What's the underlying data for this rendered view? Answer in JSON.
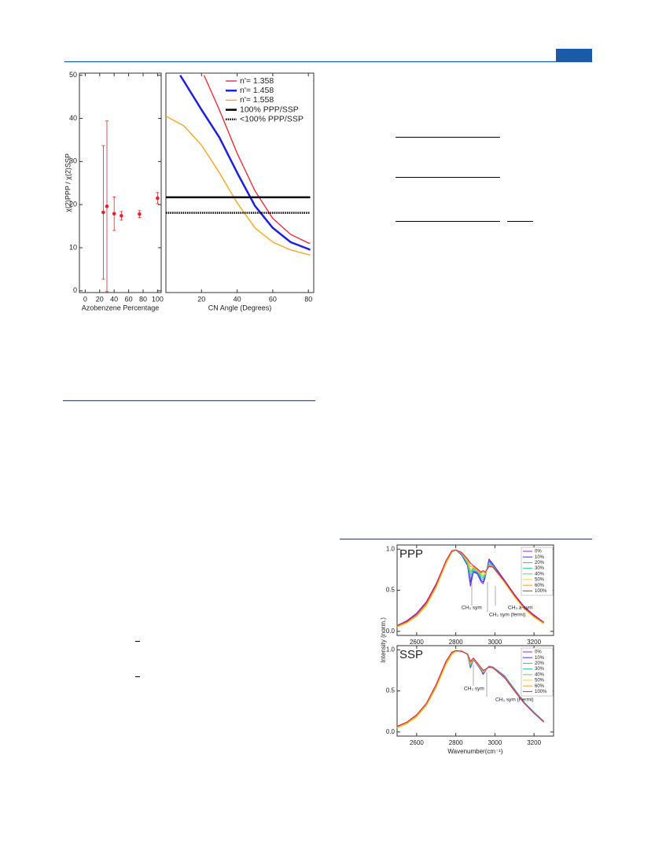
{
  "chart_data": [
    {
      "type": "scatter",
      "x_label": "Azobenzene Percentage",
      "y_label": "χ(2)PPP / χ(2)SSP",
      "x": [
        25,
        30,
        40,
        50,
        75,
        100
      ],
      "values": [
        18.2,
        19.6,
        17.9,
        17.4,
        17.8,
        21.5
      ],
      "errors": [
        15.5,
        19.8,
        3.9,
        1.0,
        0.8,
        1.3
      ],
      "color": "#e8202a",
      "xlim": [
        -8,
        105
      ],
      "ylim": [
        -0.4,
        50.5
      ],
      "xticks": [
        0,
        20,
        40,
        60,
        80,
        100
      ],
      "yticks": [
        0,
        10,
        20,
        30,
        40,
        50
      ]
    },
    {
      "type": "line",
      "x_label": "CN Angle (Degrees)",
      "xlim": [
        0,
        83
      ],
      "ylim": [
        -0.4,
        50.5
      ],
      "xticks": [
        20,
        40,
        60,
        80
      ],
      "legend": "top-right",
      "series": [
        {
          "name": "n'= 1.358",
          "color": "#e8303a",
          "style": "solid",
          "x": [
            21.4,
            30,
            40,
            50,
            60,
            70,
            80,
            81
          ],
          "values": [
            50,
            42,
            31.9,
            23.2,
            16.8,
            13.1,
            11.1,
            11
          ]
        },
        {
          "name": "n'= 1.458",
          "color": "#1f1fe0",
          "style": "solid",
          "x": [
            8,
            10,
            20,
            30,
            40,
            50,
            60,
            70,
            80,
            81
          ],
          "values": [
            50,
            48.7,
            42,
            35.6,
            27.4,
            19.7,
            14.6,
            11.3,
            9.7,
            9.5
          ]
        },
        {
          "name": "n'= 1.558",
          "color": "#f5a623",
          "style": "solid",
          "x": [
            0,
            10,
            20,
            30,
            40,
            50,
            60,
            70,
            80,
            81
          ],
          "values": [
            40.5,
            38.3,
            33.8,
            27.4,
            20.4,
            14.6,
            11.3,
            9.5,
            8.4,
            8.3
          ]
        },
        {
          "name": "100% PPP/SSP",
          "color": "#000000",
          "style": "solid",
          "x": [
            0,
            81
          ],
          "values": [
            21.7,
            21.7
          ]
        },
        {
          "name": "<100% PPP/SSP",
          "color": "#000000",
          "style": "dotted",
          "x": [
            0,
            81
          ],
          "values": [
            18.1,
            18.1
          ]
        }
      ]
    },
    {
      "type": "line",
      "panel": "PPP",
      "y_label": "Intensity (norm.)",
      "xlim": [
        2500,
        3300
      ],
      "ylim": [
        -0.05,
        1.05
      ],
      "xticks": [
        2600,
        2800,
        3000,
        3200
      ],
      "yticks": [
        {
          "value": 0,
          "label": "0.0"
        },
        0.5,
        {
          "value": 1,
          "label": "1.0"
        }
      ],
      "legend": "top-right",
      "annotations": [
        "CH₃ sym",
        "CH₃ sym (fermi)",
        "CH₃ a-sym"
      ],
      "x": [
        2500,
        2550,
        2600,
        2650,
        2700,
        2750,
        2780,
        2800,
        2830,
        2860,
        2875,
        2890,
        2910,
        2930,
        2940,
        2950,
        2970,
        2990,
        3050,
        3100,
        3150,
        3200,
        3250
      ],
      "series": [
        {
          "name": "0%",
          "color": "#8a2be2",
          "values": [
            0.07,
            0.13,
            0.22,
            0.36,
            0.58,
            0.85,
            0.97,
            0.99,
            0.93,
            0.8,
            0.55,
            0.72,
            0.7,
            0.6,
            0.58,
            0.65,
            0.88,
            0.82,
            0.62,
            0.45,
            0.3,
            0.2,
            0.11
          ]
        },
        {
          "name": "10%",
          "color": "#3a3adf",
          "values": [
            0.07,
            0.12,
            0.21,
            0.35,
            0.57,
            0.85,
            0.97,
            0.99,
            0.93,
            0.81,
            0.6,
            0.73,
            0.71,
            0.62,
            0.6,
            0.66,
            0.86,
            0.81,
            0.61,
            0.44,
            0.29,
            0.19,
            0.11
          ]
        },
        {
          "name": "20%",
          "color": "#4aa8e8",
          "values": [
            0.06,
            0.12,
            0.2,
            0.34,
            0.56,
            0.84,
            0.97,
            0.99,
            0.94,
            0.82,
            0.64,
            0.74,
            0.72,
            0.64,
            0.63,
            0.67,
            0.84,
            0.8,
            0.6,
            0.43,
            0.29,
            0.19,
            0.1
          ]
        },
        {
          "name": "30%",
          "color": "#2ec4b0",
          "values": [
            0.06,
            0.11,
            0.19,
            0.33,
            0.55,
            0.83,
            0.96,
            0.99,
            0.94,
            0.83,
            0.68,
            0.76,
            0.73,
            0.66,
            0.65,
            0.68,
            0.82,
            0.79,
            0.6,
            0.43,
            0.28,
            0.18,
            0.1
          ]
        },
        {
          "name": "40%",
          "color": "#66d04a",
          "values": [
            0.06,
            0.11,
            0.19,
            0.32,
            0.54,
            0.82,
            0.96,
            0.99,
            0.95,
            0.84,
            0.72,
            0.77,
            0.74,
            0.68,
            0.67,
            0.69,
            0.81,
            0.79,
            0.59,
            0.42,
            0.28,
            0.18,
            0.1
          ]
        },
        {
          "name": "50%",
          "color": "#d8d830",
          "values": [
            0.05,
            0.1,
            0.18,
            0.31,
            0.53,
            0.82,
            0.96,
            0.99,
            0.95,
            0.85,
            0.75,
            0.78,
            0.74,
            0.7,
            0.69,
            0.7,
            0.8,
            0.78,
            0.59,
            0.42,
            0.27,
            0.17,
            0.09
          ]
        },
        {
          "name": "60%",
          "color": "#f0a030",
          "values": [
            0.06,
            0.11,
            0.19,
            0.33,
            0.55,
            0.84,
            0.97,
            0.99,
            0.95,
            0.87,
            0.79,
            0.79,
            0.75,
            0.71,
            0.72,
            0.71,
            0.8,
            0.78,
            0.6,
            0.43,
            0.28,
            0.18,
            0.1
          ]
        },
        {
          "name": "100%",
          "color": "#e02050",
          "values": [
            0.07,
            0.12,
            0.21,
            0.35,
            0.57,
            0.86,
            0.98,
            0.99,
            0.96,
            0.88,
            0.83,
            0.8,
            0.76,
            0.72,
            0.74,
            0.72,
            0.79,
            0.78,
            0.61,
            0.44,
            0.29,
            0.19,
            0.11
          ]
        }
      ]
    },
    {
      "type": "line",
      "panel": "SSP",
      "x_label": "Wavenumber(cm⁻¹)",
      "xlim": [
        2500,
        3300
      ],
      "ylim": [
        -0.05,
        1.05
      ],
      "xticks": [
        2600,
        2800,
        3000,
        3200
      ],
      "yticks": [
        {
          "value": 0,
          "label": "0.0"
        },
        0.5,
        {
          "value": 1,
          "label": "1.0"
        }
      ],
      "legend": "top-right",
      "annotations": [
        "CH₃ sym",
        "CH₃ sym (Fermi)"
      ],
      "x": [
        2500,
        2550,
        2600,
        2650,
        2700,
        2750,
        2780,
        2800,
        2830,
        2860,
        2875,
        2890,
        2910,
        2930,
        2940,
        2950,
        2970,
        2990,
        3050,
        3100,
        3150,
        3200,
        3250
      ],
      "series": [
        {
          "name": "0%",
          "color": "#8a2be2",
          "values": [
            0.06,
            0.11,
            0.2,
            0.34,
            0.56,
            0.83,
            0.95,
            0.98,
            0.99,
            0.94,
            0.78,
            0.88,
            0.82,
            0.75,
            0.7,
            0.74,
            0.8,
            0.79,
            0.68,
            0.52,
            0.36,
            0.24,
            0.13
          ]
        },
        {
          "name": "10%",
          "color": "#3a3adf",
          "values": [
            0.06,
            0.11,
            0.2,
            0.34,
            0.56,
            0.83,
            0.95,
            0.98,
            0.99,
            0.94,
            0.79,
            0.88,
            0.82,
            0.75,
            0.71,
            0.74,
            0.8,
            0.79,
            0.68,
            0.52,
            0.36,
            0.24,
            0.13
          ]
        },
        {
          "name": "20%",
          "color": "#4aa8e8",
          "values": [
            0.06,
            0.11,
            0.2,
            0.34,
            0.56,
            0.84,
            0.95,
            0.98,
            0.99,
            0.94,
            0.8,
            0.89,
            0.83,
            0.76,
            0.72,
            0.75,
            0.8,
            0.79,
            0.67,
            0.51,
            0.36,
            0.24,
            0.13
          ]
        },
        {
          "name": "30%",
          "color": "#2ec4b0",
          "values": [
            0.05,
            0.1,
            0.19,
            0.33,
            0.55,
            0.83,
            0.95,
            0.98,
            0.99,
            0.94,
            0.81,
            0.89,
            0.83,
            0.76,
            0.72,
            0.75,
            0.79,
            0.78,
            0.67,
            0.51,
            0.35,
            0.23,
            0.12
          ]
        },
        {
          "name": "40%",
          "color": "#66d04a",
          "values": [
            0.05,
            0.1,
            0.19,
            0.32,
            0.54,
            0.82,
            0.94,
            0.98,
            0.99,
            0.94,
            0.82,
            0.89,
            0.83,
            0.77,
            0.73,
            0.75,
            0.79,
            0.78,
            0.67,
            0.51,
            0.35,
            0.23,
            0.12
          ]
        },
        {
          "name": "50%",
          "color": "#d8d830",
          "values": [
            0.05,
            0.1,
            0.18,
            0.32,
            0.54,
            0.82,
            0.94,
            0.98,
            0.99,
            0.94,
            0.83,
            0.89,
            0.83,
            0.77,
            0.73,
            0.75,
            0.79,
            0.78,
            0.66,
            0.5,
            0.35,
            0.23,
            0.12
          ]
        },
        {
          "name": "60%",
          "color": "#f0a030",
          "values": [
            0.06,
            0.11,
            0.2,
            0.34,
            0.56,
            0.84,
            0.96,
            0.99,
            0.98,
            0.95,
            0.84,
            0.9,
            0.84,
            0.78,
            0.74,
            0.76,
            0.79,
            0.78,
            0.66,
            0.5,
            0.35,
            0.23,
            0.12
          ]
        },
        {
          "name": "100%",
          "color": "#e02050",
          "values": [
            0.07,
            0.12,
            0.21,
            0.35,
            0.58,
            0.86,
            0.97,
            0.99,
            0.98,
            0.95,
            0.86,
            0.9,
            0.84,
            0.78,
            0.75,
            0.76,
            0.79,
            0.78,
            0.66,
            0.5,
            0.35,
            0.23,
            0.12
          ]
        }
      ]
    }
  ]
}
